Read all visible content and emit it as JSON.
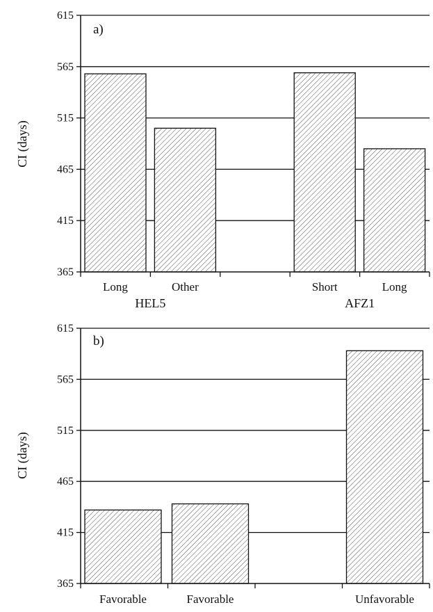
{
  "chart_data": [
    {
      "type": "bar",
      "panel_label": "a)",
      "ylabel": "CI (days)",
      "ylim": [
        365,
        615
      ],
      "yticks": [
        "365",
        "415",
        "465",
        "515",
        "565",
        "615"
      ],
      "grid": "horizontal",
      "slots": 5,
      "categories": [
        {
          "label": "Long",
          "value": 558,
          "slot": 0
        },
        {
          "label": "Other",
          "value": 505,
          "slot": 1
        },
        {
          "label": "Short",
          "value": 559,
          "slot": 3
        },
        {
          "label": "Long",
          "value": 485,
          "slot": 4
        }
      ],
      "groups": [
        {
          "label": "HEL5",
          "slots": [
            0,
            1
          ]
        },
        {
          "label": "AFZ1",
          "slots": [
            3,
            4
          ]
        }
      ]
    },
    {
      "type": "bar",
      "panel_label": "b)",
      "ylabel": "CI (days)",
      "ylim": [
        365,
        615
      ],
      "yticks": [
        "365",
        "415",
        "465",
        "515",
        "565",
        "615"
      ],
      "grid": "horizontal",
      "slots": 4,
      "categories": [
        {
          "label": "Favorable",
          "value": 437,
          "slot": 0
        },
        {
          "label": "Favorable",
          "value": 443,
          "slot": 1
        },
        {
          "label": "Unfavorable",
          "value": 593,
          "slot": 3
        }
      ],
      "groups": []
    }
  ],
  "colors": {
    "bar_fill": "#ffffff",
    "hatch": "#555555",
    "axis": "#111111"
  }
}
